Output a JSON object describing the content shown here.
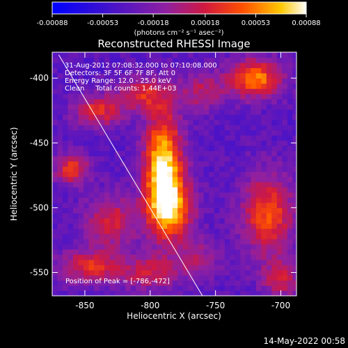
{
  "colorbar": {
    "ticks": [
      "-0.00088",
      "-0.00053",
      "-0.00018",
      "0.00018",
      "0.00053",
      "0.00088"
    ],
    "tick_values": [
      -0.00088,
      -0.00053,
      -0.00018,
      0.00018,
      0.00053,
      0.00088
    ],
    "range": [
      -0.00088,
      0.00088
    ],
    "unit_label": "(photons cm⁻² s⁻¹ asec⁻²)"
  },
  "chart_data": {
    "type": "heatmap",
    "title": "Reconstructed RHESSI Image",
    "xlabel": "Heliocentric X (arcsec)",
    "ylabel": "Heliocentric Y (arcsec)",
    "xlim": [
      -875,
      -688
    ],
    "ylim": [
      -568,
      -380
    ],
    "x_ticks": [
      "-850",
      "-800",
      "-750",
      "-700"
    ],
    "x_tick_values": [
      -850,
      -800,
      -750,
      -700
    ],
    "y_ticks": [
      "-400",
      "-450",
      "-500",
      "-550"
    ],
    "y_tick_values": [
      -400,
      -450,
      -500,
      -550
    ],
    "colormap": "blue-purple-red-yellow-white",
    "peak": [
      -786,
      -472
    ],
    "limb_line": [
      [
        -870,
        -382
      ],
      [
        -760,
        -568
      ]
    ],
    "sources": [
      {
        "x": -790,
        "y": -470,
        "amp": 1.0,
        "sx": 10,
        "sy": 30
      },
      {
        "x": -783,
        "y": -500,
        "amp": 0.6,
        "sx": 12,
        "sy": 16
      },
      {
        "x": -720,
        "y": -400,
        "amp": 0.75,
        "sx": 14,
        "sy": 10
      },
      {
        "x": -860,
        "y": -470,
        "amp": 0.55,
        "sx": 9,
        "sy": 8
      },
      {
        "x": -840,
        "y": -425,
        "amp": 0.5,
        "sx": 13,
        "sy": 9
      },
      {
        "x": -805,
        "y": -412,
        "amp": 0.45,
        "sx": 14,
        "sy": 9
      },
      {
        "x": -710,
        "y": -505,
        "amp": 0.6,
        "sx": 14,
        "sy": 22
      },
      {
        "x": -830,
        "y": -510,
        "amp": 0.45,
        "sx": 14,
        "sy": 14
      },
      {
        "x": -845,
        "y": -545,
        "amp": 0.5,
        "sx": 18,
        "sy": 9
      },
      {
        "x": -760,
        "y": -410,
        "amp": 0.35,
        "sx": 12,
        "sy": 10
      },
      {
        "x": -765,
        "y": -540,
        "amp": 0.35,
        "sx": 12,
        "sy": 10
      },
      {
        "x": -700,
        "y": -555,
        "amp": 0.4,
        "sx": 10,
        "sy": 10
      },
      {
        "x": -800,
        "y": -550,
        "amp": 0.4,
        "sx": 14,
        "sy": 9
      }
    ]
  },
  "annotations": {
    "time": "31-Aug-2012 07:08:32.000 to 07:10:08.000",
    "detectors": "Detectors: 3F 5F 6F 7F 8F, Att 0",
    "energy": "Energy Range: 12.0 - 25.0 keV",
    "clean": "Clean     Total counts: 1.44E+03",
    "peak": "Position of Peak = [-786,-472]"
  },
  "footer": {
    "timestamp": "14-May-2022 00:58"
  }
}
